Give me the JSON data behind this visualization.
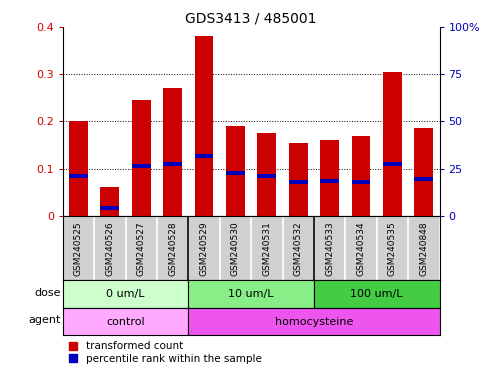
{
  "title": "GDS3413 / 485001",
  "samples": [
    "GSM240525",
    "GSM240526",
    "GSM240527",
    "GSM240528",
    "GSM240529",
    "GSM240530",
    "GSM240531",
    "GSM240532",
    "GSM240533",
    "GSM240534",
    "GSM240535",
    "GSM240848"
  ],
  "bar_values": [
    0.2,
    0.06,
    0.245,
    0.27,
    0.38,
    0.19,
    0.175,
    0.155,
    0.16,
    0.17,
    0.305,
    0.185
  ],
  "blue_values": [
    0.085,
    0.016,
    0.105,
    0.11,
    0.126,
    0.09,
    0.085,
    0.072,
    0.073,
    0.072,
    0.11,
    0.078
  ],
  "bar_color": "#cc0000",
  "blue_color": "#0000bb",
  "ylim": [
    0,
    0.4
  ],
  "y2lim": [
    0,
    100
  ],
  "yticks": [
    0,
    0.1,
    0.2,
    0.3,
    0.4
  ],
  "ytick_labels": [
    "0",
    "0.1",
    "0.2",
    "0.3",
    "0.4"
  ],
  "y2ticks": [
    0,
    25,
    50,
    75,
    100
  ],
  "y2tick_labels": [
    "0",
    "25",
    "50",
    "75",
    "100%"
  ],
  "dose_groups": [
    {
      "label": "0 um/L",
      "start": 0,
      "end": 4,
      "color": "#ccffcc"
    },
    {
      "label": "10 um/L",
      "start": 4,
      "end": 8,
      "color": "#88ee88"
    },
    {
      "label": "100 um/L",
      "start": 8,
      "end": 12,
      "color": "#44cc44"
    }
  ],
  "agent_groups": [
    {
      "label": "control",
      "start": 0,
      "end": 4,
      "color": "#ffaaff"
    },
    {
      "label": "homocysteine",
      "start": 4,
      "end": 12,
      "color": "#ee55ee"
    }
  ],
  "dose_label": "dose",
  "agent_label": "agent",
  "legend_bar": "transformed count",
  "legend_blue": "percentile rank within the sample",
  "title_fontsize": 10,
  "axis_label_color_left": "#cc0000",
  "axis_label_color_right": "#0000bb",
  "sample_bg": "#d0d0d0",
  "bar_width": 0.6
}
